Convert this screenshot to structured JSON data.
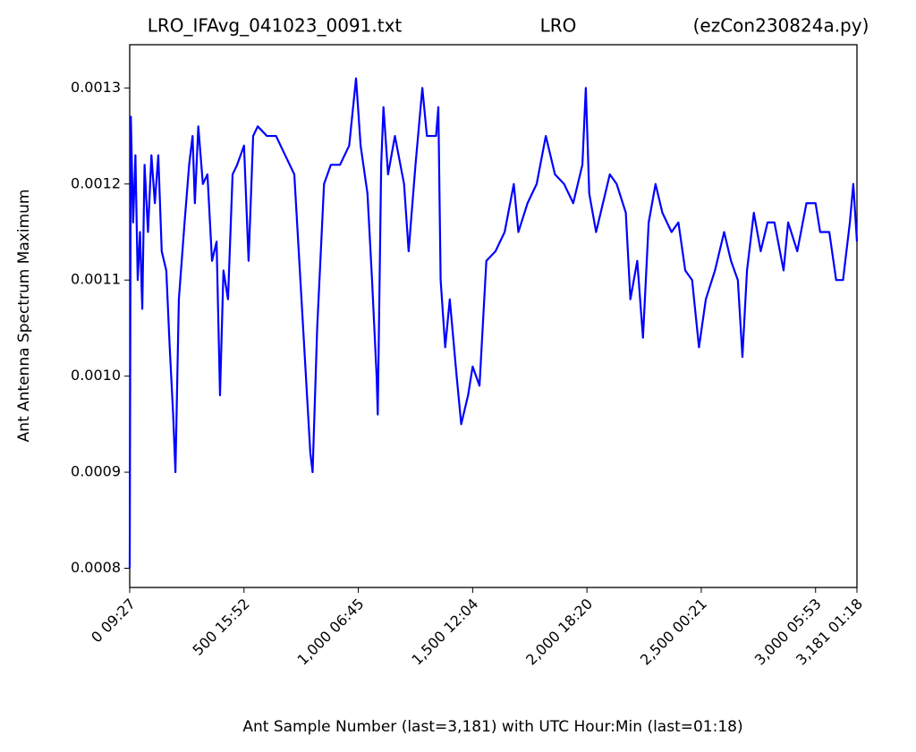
{
  "chart_data": {
    "type": "line",
    "title": [
      "LRO_IFAvg_041023_0091.txt",
      "LRO",
      "(ezCon230824a.py)"
    ],
    "x_label": "Ant Sample Number (last=3,181) with UTC Hour:Min (last=01:18)",
    "y_label": "Ant Antenna Spectrum Maximum",
    "xlim": [
      0,
      3181
    ],
    "ylim": [
      0.00078,
      0.001345
    ],
    "xticks": [
      {
        "value": 0,
        "label": "0  09:27"
      },
      {
        "value": 500,
        "label": "500  15:52"
      },
      {
        "value": 1000,
        "label": "1,000  06:45"
      },
      {
        "value": 1500,
        "label": "1,500  12:04"
      },
      {
        "value": 2000,
        "label": "2,000  18:20"
      },
      {
        "value": 2500,
        "label": "2,500  00:21"
      },
      {
        "value": 3000,
        "label": "3,000  05:53"
      },
      {
        "value": 3181,
        "label": "3,181  01:18"
      }
    ],
    "yticks": [
      {
        "value": 0.0008,
        "label": "0.0008"
      },
      {
        "value": 0.0009,
        "label": "0.0009"
      },
      {
        "value": 0.001,
        "label": "0.0010"
      },
      {
        "value": 0.0011,
        "label": "0.0011"
      },
      {
        "value": 0.0012,
        "label": "0.0012"
      },
      {
        "value": 0.0013,
        "label": "0.0013"
      }
    ],
    "grid": false,
    "x": [
      0,
      5,
      15,
      25,
      35,
      45,
      55,
      65,
      80,
      95,
      110,
      125,
      140,
      160,
      175,
      190,
      200,
      215,
      240,
      260,
      275,
      285,
      300,
      320,
      340,
      360,
      380,
      395,
      410,
      430,
      450,
      470,
      500,
      520,
      540,
      560,
      600,
      640,
      680,
      720,
      790,
      800,
      820,
      850,
      880,
      920,
      960,
      990,
      1010,
      1040,
      1060,
      1080,
      1085,
      1100,
      1110,
      1130,
      1160,
      1200,
      1220,
      1250,
      1280,
      1300,
      1340,
      1350,
      1360,
      1380,
      1400,
      1430,
      1450,
      1480,
      1500,
      1530,
      1560,
      1600,
      1640,
      1680,
      1700,
      1740,
      1780,
      1820,
      1860,
      1900,
      1940,
      1980,
      1995,
      2010,
      2040,
      2060,
      2100,
      2130,
      2170,
      2190,
      2220,
      2245,
      2270,
      2300,
      2330,
      2370,
      2400,
      2430,
      2460,
      2490,
      2520,
      2560,
      2600,
      2630,
      2660,
      2680,
      2700,
      2730,
      2760,
      2790,
      2820,
      2860,
      2880,
      2920,
      2960,
      3000,
      3020,
      3060,
      3090,
      3120,
      3150,
      3165,
      3181
    ],
    "series": [
      {
        "name": "Ant",
        "color": "#0000ff",
        "values": [
          0.0008,
          0.00127,
          0.00116,
          0.00123,
          0.0011,
          0.00115,
          0.00107,
          0.00122,
          0.00115,
          0.00123,
          0.00118,
          0.00123,
          0.00113,
          0.00111,
          0.00103,
          0.00096,
          0.0009,
          0.00108,
          0.00116,
          0.00122,
          0.00125,
          0.00118,
          0.00126,
          0.0012,
          0.00121,
          0.00112,
          0.00114,
          0.00098,
          0.00111,
          0.00108,
          0.00121,
          0.00122,
          0.00124,
          0.00112,
          0.00125,
          0.00126,
          0.00125,
          0.00125,
          0.00123,
          0.00121,
          0.00092,
          0.0009,
          0.00105,
          0.0012,
          0.00122,
          0.00122,
          0.00124,
          0.00131,
          0.00124,
          0.00119,
          0.0011,
          0.001,
          0.00096,
          0.00122,
          0.00128,
          0.00121,
          0.00125,
          0.0012,
          0.00113,
          0.00122,
          0.0013,
          0.00125,
          0.00125,
          0.00128,
          0.0011,
          0.00103,
          0.00108,
          0.001,
          0.00095,
          0.00098,
          0.00101,
          0.00099,
          0.00112,
          0.00113,
          0.00115,
          0.0012,
          0.00115,
          0.00118,
          0.0012,
          0.00125,
          0.00121,
          0.0012,
          0.00118,
          0.00122,
          0.0013,
          0.00119,
          0.00115,
          0.00117,
          0.00121,
          0.0012,
          0.00117,
          0.00108,
          0.00112,
          0.00104,
          0.00116,
          0.0012,
          0.00117,
          0.00115,
          0.00116,
          0.00111,
          0.0011,
          0.00103,
          0.00108,
          0.00111,
          0.00115,
          0.00112,
          0.0011,
          0.00102,
          0.00111,
          0.00117,
          0.00113,
          0.00116,
          0.00116,
          0.00111,
          0.00116,
          0.00113,
          0.00118,
          0.00118,
          0.00115,
          0.00115,
          0.0011,
          0.0011,
          0.00116,
          0.0012,
          0.00114
        ]
      }
    ]
  }
}
